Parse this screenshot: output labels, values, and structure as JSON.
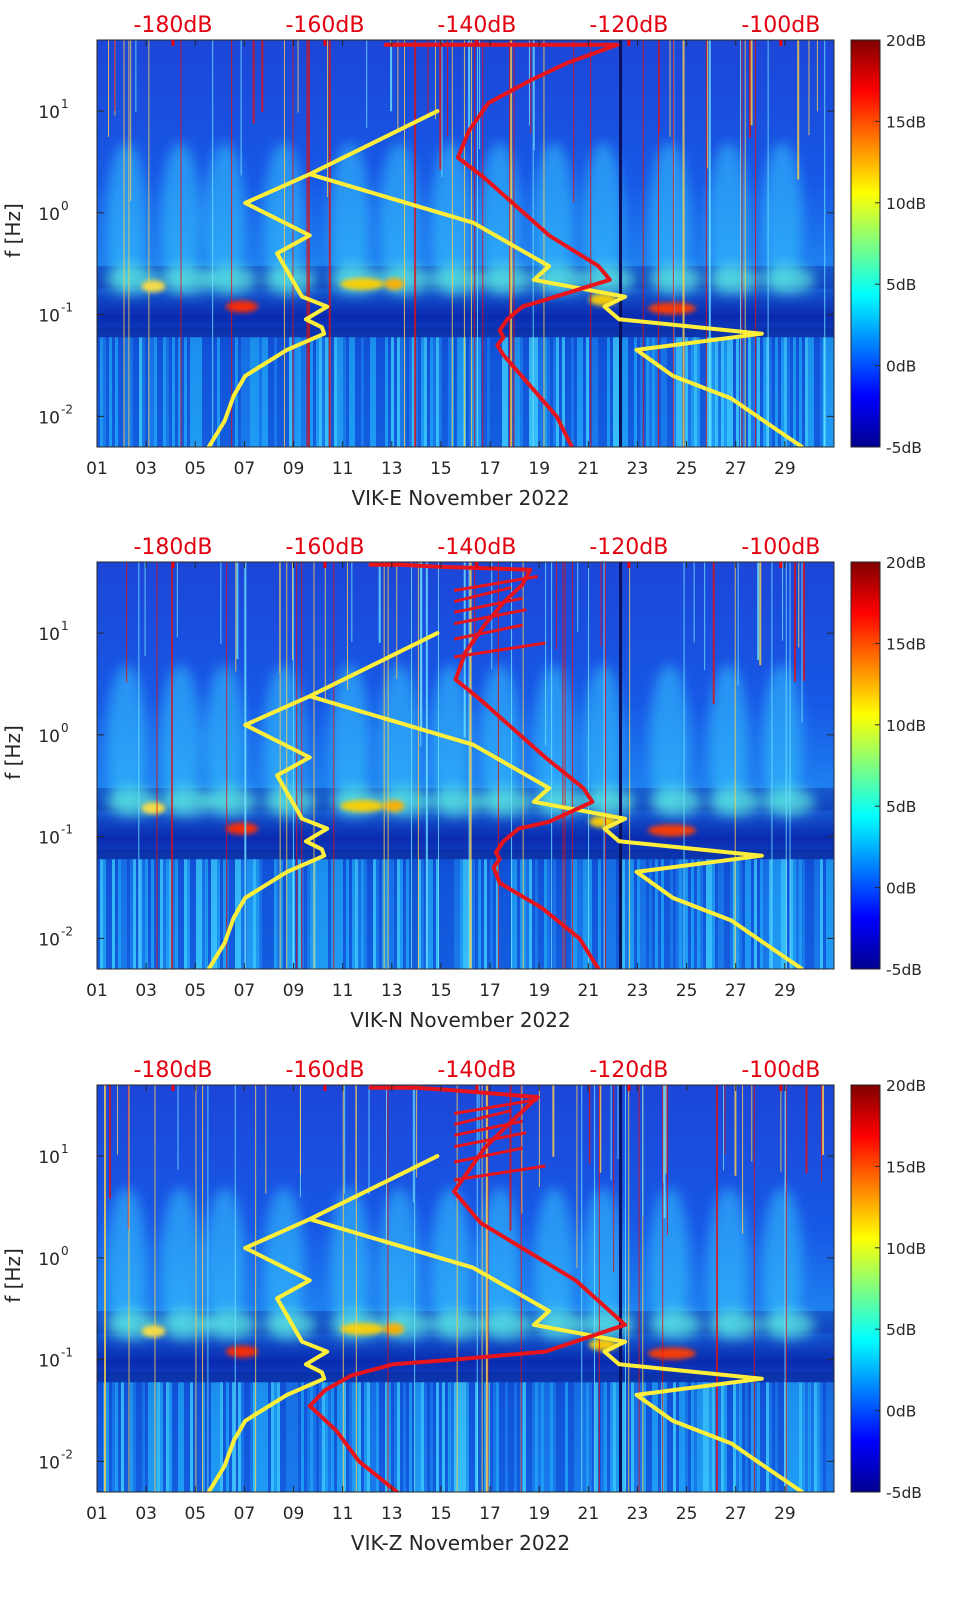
{
  "chart_data": [
    {
      "type": "heatmap",
      "title": "",
      "xlabel": "VIK-E November 2022",
      "ylabel": "f [Hz]",
      "x_tick_labels": [
        "01",
        "03",
        "05",
        "07",
        "09",
        "11",
        "13",
        "15",
        "17",
        "19",
        "21",
        "23",
        "25",
        "27",
        "29"
      ],
      "y_tick_labels": [
        "10^{-2}",
        "10^{-1}",
        "10^{0}",
        "10^{1}"
      ],
      "y_tick_mantissa": [
        "10",
        "10",
        "10",
        "10"
      ],
      "y_tick_exponents": [
        "-2",
        "-1",
        "0",
        "1"
      ],
      "y_ticks": [
        0.01,
        0.1,
        1,
        10
      ],
      "ylim": [
        0.005,
        50
      ],
      "xlim": [
        1,
        31
      ],
      "top_axis_labels": [
        "-180dB",
        "-160dB",
        "-140dB",
        "-120dB",
        "-100dB"
      ],
      "top_axis_values": [
        -180,
        -160,
        -140,
        -120,
        -100
      ],
      "top_axis_range": [
        -190,
        -93
      ],
      "colorbar": {
        "labels": [
          "20dB",
          "15dB",
          "10dB",
          "5dB",
          "0dB",
          "-5dB"
        ],
        "values": [
          20,
          15,
          10,
          5,
          0,
          -5
        ],
        "range": [
          -5,
          20
        ]
      },
      "series": [
        {
          "name": "yellow curve",
          "color": "#ffef3a",
          "x": [
            -175.3,
            -173.2,
            -172.0,
            -170.5,
            -165.0,
            -160.1,
            -160.4,
            -162.5,
            -159.7,
            -163.0,
            -166.3,
            -162.0,
            -170.5,
            -162.0,
            -145.2,
            -162.0,
            -140.5,
            -130.5,
            -132.5,
            -120.5,
            -123.2,
            -121.3,
            -102.5,
            -119.0,
            -114.2,
            -106.5,
            -103.1,
            -97.2
          ],
          "y": [
            0.005,
            0.009,
            0.016,
            0.025,
            0.045,
            0.065,
            0.075,
            0.09,
            0.12,
            0.15,
            0.4,
            0.6,
            1.25,
            2.4,
            10,
            2.4,
            0.8,
            0.3,
            0.22,
            0.15,
            0.12,
            0.09,
            0.065,
            0.045,
            0.025,
            0.015,
            0.01,
            0.005
          ]
        },
        {
          "name": "red curve",
          "color": "#e8141c",
          "x": [
            -127.5,
            -129.5,
            -133.0,
            -136.5,
            -137.3,
            -136.5,
            -137.0,
            -136.0,
            -134.0,
            -131.0,
            -122.5,
            -124.0,
            -130.5,
            -139.0,
            -142.5,
            -141.0,
            -138.5,
            -133.0,
            -128.0,
            -121.5,
            -140.5,
            -145.0,
            -152.0
          ],
          "y": [
            0.005,
            0.01,
            0.02,
            0.04,
            0.05,
            0.06,
            0.07,
            0.09,
            0.12,
            0.14,
            0.22,
            0.3,
            0.6,
            2.2,
            3.5,
            6.5,
            12,
            20,
            30,
            45,
            45,
            45,
            45
          ]
        }
      ]
    },
    {
      "type": "heatmap",
      "title": "",
      "xlabel": "VIK-N November 2022",
      "ylabel": "f [Hz]",
      "x_tick_labels": [
        "01",
        "03",
        "05",
        "07",
        "09",
        "11",
        "13",
        "15",
        "17",
        "19",
        "21",
        "23",
        "25",
        "27",
        "29"
      ],
      "y_tick_labels": [
        "10^{-2}",
        "10^{-1}",
        "10^{0}",
        "10^{1}"
      ],
      "y_tick_mantissa": [
        "10",
        "10",
        "10",
        "10"
      ],
      "y_tick_exponents": [
        "-2",
        "-1",
        "0",
        "1"
      ],
      "y_ticks": [
        0.01,
        0.1,
        1,
        10
      ],
      "ylim": [
        0.005,
        50
      ],
      "xlim": [
        1,
        31
      ],
      "top_axis_labels": [
        "-180dB",
        "-160dB",
        "-140dB",
        "-120dB",
        "-100dB"
      ],
      "top_axis_values": [
        -180,
        -160,
        -140,
        -120,
        -100
      ],
      "top_axis_range": [
        -190,
        -93
      ],
      "colorbar": {
        "labels": [
          "20dB",
          "15dB",
          "10dB",
          "5dB",
          "0dB",
          "-5dB"
        ],
        "values": [
          20,
          15,
          10,
          5,
          0,
          -5
        ],
        "range": [
          -5,
          20
        ]
      },
      "series": [
        {
          "name": "yellow curve",
          "color": "#ffef3a",
          "x": [
            -175.3,
            -173.2,
            -172.0,
            -170.5,
            -165.0,
            -160.1,
            -160.4,
            -162.5,
            -159.7,
            -163.0,
            -166.3,
            -162.0,
            -170.5,
            -162.0,
            -145.2,
            -162.0,
            -140.5,
            -130.5,
            -132.5,
            -120.5,
            -123.2,
            -121.3,
            -102.5,
            -119.0,
            -114.2,
            -106.5,
            -103.1,
            -97.2
          ],
          "y": [
            0.005,
            0.009,
            0.016,
            0.025,
            0.045,
            0.065,
            0.075,
            0.09,
            0.12,
            0.15,
            0.4,
            0.6,
            1.25,
            2.4,
            10,
            2.4,
            0.8,
            0.3,
            0.22,
            0.15,
            0.12,
            0.09,
            0.065,
            0.045,
            0.025,
            0.015,
            0.01,
            0.005
          ]
        },
        {
          "name": "red curve",
          "color": "#e8141c",
          "x": [
            -124.0,
            -126.5,
            -131.5,
            -137.0,
            -137.8,
            -137.0,
            -137.5,
            -136.5,
            -134.5,
            -130.5,
            -124.8,
            -126.0,
            -131.0,
            -139.5,
            -142.8,
            -141.5,
            -139.0,
            -136.5,
            -134.0,
            -133.0,
            -145.0,
            -150.0,
            -154.0
          ],
          "y": [
            0.005,
            0.01,
            0.02,
            0.035,
            0.05,
            0.06,
            0.07,
            0.09,
            0.12,
            0.14,
            0.22,
            0.3,
            0.6,
            2.2,
            3.5,
            6.5,
            12,
            20,
            30,
            42,
            45,
            47,
            47
          ]
        }
      ]
    },
    {
      "type": "heatmap",
      "title": "",
      "xlabel": "VIK-Z November 2022",
      "ylabel": "f [Hz]",
      "x_tick_labels": [
        "01",
        "03",
        "05",
        "07",
        "09",
        "11",
        "13",
        "15",
        "17",
        "19",
        "21",
        "23",
        "25",
        "27",
        "29"
      ],
      "y_tick_labels": [
        "10^{-2}",
        "10^{-1}",
        "10^{0}",
        "10^{1}"
      ],
      "y_tick_mantissa": [
        "10",
        "10",
        "10",
        "10"
      ],
      "y_tick_exponents": [
        "-2",
        "-1",
        "0",
        "1"
      ],
      "y_ticks": [
        0.01,
        0.1,
        1,
        10
      ],
      "ylim": [
        0.005,
        50
      ],
      "xlim": [
        1,
        31
      ],
      "top_axis_labels": [
        "-180dB",
        "-160dB",
        "-140dB",
        "-120dB",
        "-100dB"
      ],
      "top_axis_values": [
        -180,
        -160,
        -140,
        -120,
        -100
      ],
      "top_axis_range": [
        -190,
        -93
      ],
      "colorbar": {
        "labels": [
          "20dB",
          "15dB",
          "10dB",
          "5dB",
          "0dB",
          "-5dB"
        ],
        "values": [
          20,
          15,
          10,
          5,
          0,
          -5
        ],
        "range": [
          -5,
          20
        ]
      },
      "series": [
        {
          "name": "yellow curve",
          "color": "#ffef3a",
          "x": [
            -175.3,
            -173.2,
            -172.0,
            -170.5,
            -165.0,
            -160.1,
            -160.4,
            -162.5,
            -159.7,
            -163.0,
            -166.3,
            -162.0,
            -170.5,
            -162.0,
            -145.2,
            -162.0,
            -140.5,
            -130.5,
            -132.5,
            -120.5,
            -123.2,
            -121.3,
            -102.5,
            -119.0,
            -114.2,
            -106.5,
            -103.1,
            -97.2
          ],
          "y": [
            0.005,
            0.009,
            0.016,
            0.025,
            0.045,
            0.065,
            0.075,
            0.09,
            0.12,
            0.15,
            0.4,
            0.6,
            1.25,
            2.4,
            10,
            2.4,
            0.8,
            0.3,
            0.22,
            0.15,
            0.12,
            0.09,
            0.065,
            0.045,
            0.025,
            0.015,
            0.01,
            0.005
          ]
        },
        {
          "name": "red curve",
          "color": "#e8141c",
          "x": [
            -150.5,
            -155.5,
            -158.5,
            -161.0,
            -162.0,
            -160.0,
            -156.5,
            -151.0,
            -143.0,
            -131.0,
            -120.5,
            -122.5,
            -127.0,
            -139.5,
            -143.0,
            -141.5,
            -139.0,
            -136.0,
            -133.5,
            -132.0,
            -144.0,
            -148.0,
            -154.0
          ],
          "y": [
            0.005,
            0.01,
            0.02,
            0.03,
            0.035,
            0.05,
            0.07,
            0.09,
            0.1,
            0.12,
            0.22,
            0.3,
            0.6,
            2.2,
            4.5,
            6.5,
            12,
            20,
            30,
            38,
            45,
            47,
            47
          ]
        }
      ]
    }
  ]
}
